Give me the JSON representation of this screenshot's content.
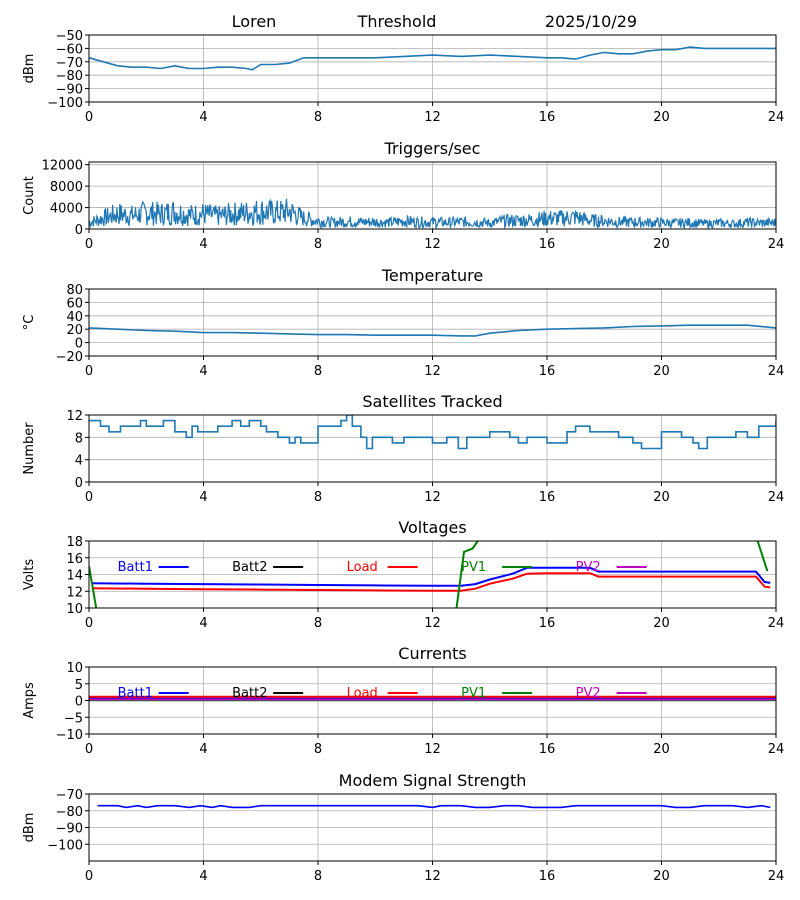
{
  "header": {
    "site": "Loren",
    "mode": "Threshold",
    "date": "2025/10/29"
  },
  "chart_data": [
    {
      "type": "line",
      "title": "",
      "ylabel": "dBm",
      "xlim": [
        0,
        24
      ],
      "ylim": [
        -100,
        -50
      ],
      "xticks": [
        0,
        4,
        8,
        12,
        16,
        20,
        24
      ],
      "yticks": [
        -100,
        -90,
        -80,
        -70,
        -60,
        -50
      ],
      "series": [
        {
          "name": "Threshold",
          "color": "#1f77b4",
          "x": [
            0,
            0.5,
            1,
            1.5,
            2,
            2.5,
            3,
            3.5,
            4,
            4.5,
            5,
            5.5,
            5.7,
            6,
            6.5,
            7,
            7.5,
            8,
            9,
            10,
            11,
            12,
            13,
            14,
            15,
            16,
            16.5,
            17,
            17.5,
            18,
            18.5,
            19,
            19.5,
            20,
            20.5,
            21,
            21.5,
            22,
            23,
            24
          ],
          "y": [
            -67,
            -70,
            -73,
            -74,
            -74,
            -75,
            -73,
            -75,
            -75,
            -74,
            -74,
            -75,
            -76,
            -72,
            -72,
            -71,
            -67,
            -67,
            -67,
            -67,
            -66,
            -65,
            -66,
            -65,
            -66,
            -67,
            -67,
            -68,
            -65,
            -63,
            -64,
            -64,
            -62,
            -61,
            -61,
            -59,
            -60,
            -60,
            -60,
            -60
          ]
        }
      ]
    },
    {
      "type": "line",
      "title": "Triggers/sec",
      "ylabel": "Count",
      "xlim": [
        0,
        24
      ],
      "ylim": [
        0,
        12500
      ],
      "xticks": [
        0,
        4,
        8,
        12,
        16,
        20,
        24
      ],
      "yticks": [
        0,
        4000,
        8000,
        12000
      ],
      "series": [
        {
          "name": "Triggers",
          "color": "#1f77b4",
          "noisy": true,
          "x": [
            0,
            0.5,
            1,
            1.5,
            2,
            2.5,
            3,
            3.5,
            4,
            4.5,
            5,
            5.5,
            6,
            6.5,
            7,
            7.5,
            8,
            8.5,
            9,
            9.5,
            10,
            10.5,
            11,
            11.5,
            12,
            12.5,
            13,
            13.5,
            14,
            14.5,
            15,
            15.5,
            16,
            16.5,
            17,
            17.5,
            18,
            18.5,
            19,
            19.5,
            20,
            20.5,
            21,
            21.5,
            22,
            22.5,
            23,
            23.5,
            24
          ],
          "y": [
            1200,
            2000,
            2800,
            2500,
            3000,
            2800,
            3200,
            2600,
            2800,
            2400,
            2800,
            3000,
            3300,
            3000,
            3300,
            2000,
            1500,
            1200,
            1400,
            1300,
            1300,
            1200,
            1500,
            1300,
            1300,
            1200,
            1300,
            1300,
            1100,
            1500,
            1600,
            1700,
            2000,
            2000,
            2200,
            1600,
            1500,
            1300,
            1300,
            1200,
            1200,
            1100,
            1200,
            1000,
            1100,
            1000,
            1200,
            1100,
            1200
          ]
        }
      ]
    },
    {
      "type": "line",
      "title": "Temperature",
      "ylabel": "°C",
      "xlim": [
        0,
        24
      ],
      "ylim": [
        -20,
        80
      ],
      "xticks": [
        0,
        4,
        8,
        12,
        16,
        20,
        24
      ],
      "yticks": [
        -20,
        0,
        20,
        40,
        60,
        80
      ],
      "series": [
        {
          "name": "Temperature",
          "color": "#1f77b4",
          "x": [
            0,
            1,
            2,
            3,
            4,
            5,
            6,
            7,
            8,
            9,
            10,
            11,
            12,
            13,
            13.5,
            14,
            15,
            16,
            17,
            18,
            19,
            20,
            21,
            22,
            23,
            24
          ],
          "y": [
            22,
            20,
            18,
            17,
            15,
            15,
            14,
            13,
            12,
            12,
            11,
            11,
            11,
            10,
            10,
            14,
            18,
            20,
            21,
            22,
            24,
            25,
            26,
            26,
            26,
            22
          ]
        }
      ]
    },
    {
      "type": "line",
      "title": "Satellites Tracked",
      "ylabel": "Number",
      "xlim": [
        0,
        24
      ],
      "ylim": [
        0,
        12
      ],
      "xticks": [
        0,
        4,
        8,
        12,
        16,
        20,
        24
      ],
      "yticks": [
        0,
        4,
        8,
        12
      ],
      "series": [
        {
          "name": "Satellites",
          "color": "#1f77b4",
          "step": true,
          "x": [
            0,
            0.4,
            0.7,
            1.1,
            1.4,
            1.8,
            2,
            2.3,
            2.6,
            3,
            3.4,
            3.6,
            3.8,
            4,
            4.2,
            4.5,
            5,
            5.3,
            5.6,
            6,
            6.2,
            6.6,
            7,
            7.2,
            7.4,
            7.9,
            8,
            8.5,
            8.8,
            9,
            9.2,
            9.5,
            9.7,
            9.9,
            10.2,
            10.6,
            11,
            11.5,
            12,
            12.5,
            12.9,
            13.2,
            13.6,
            14,
            14.2,
            14.7,
            15,
            15.3,
            15.8,
            16,
            16.7,
            17,
            17.5,
            18,
            18.5,
            19,
            19.3,
            20,
            20.7,
            21.1,
            21.3,
            21.6,
            22,
            22.6,
            23,
            23.4,
            23.8,
            24
          ],
          "y": [
            11,
            10,
            9,
            10,
            10,
            11,
            10,
            10,
            11,
            9,
            8,
            10,
            9,
            9,
            9,
            10,
            11,
            10,
            11,
            10,
            9,
            8,
            7,
            8,
            7,
            7,
            10,
            10,
            11,
            12,
            10,
            8,
            6,
            8,
            8,
            7,
            8,
            8,
            7,
            8,
            6,
            8,
            8,
            9,
            9,
            8,
            7,
            8,
            8,
            7,
            9,
            10,
            9,
            9,
            8,
            7,
            6,
            9,
            8,
            7,
            6,
            8,
            8,
            9,
            8,
            10,
            10,
            11
          ]
        }
      ]
    },
    {
      "type": "line",
      "title": "Voltages",
      "ylabel": "Volts",
      "xlim": [
        0,
        24
      ],
      "ylim": [
        10,
        18
      ],
      "xticks": [
        0,
        4,
        8,
        12,
        16,
        20,
        24
      ],
      "yticks": [
        10,
        12,
        14,
        16,
        18
      ],
      "legend": [
        "Batt1",
        "Batt2",
        "Load",
        "PV1",
        "PV2"
      ],
      "series": [
        {
          "name": "Batt1",
          "color": "#0000ff",
          "x": [
            0.1,
            2,
            4,
            6,
            8,
            10,
            12,
            13,
            13.5,
            14,
            14.8,
            15.3,
            16,
            17,
            17.5,
            17.8,
            18,
            20,
            22,
            23.3,
            23.6,
            23.8
          ],
          "y": [
            12.95,
            12.9,
            12.85,
            12.8,
            12.75,
            12.7,
            12.65,
            12.65,
            12.85,
            13.4,
            14.1,
            14.8,
            14.8,
            14.8,
            14.8,
            14.35,
            14.35,
            14.35,
            14.35,
            14.35,
            13.1,
            13.0
          ]
        },
        {
          "name": "Batt2",
          "color": "#000000",
          "x": [],
          "y": []
        },
        {
          "name": "Load",
          "color": "#ff0000",
          "x": [
            0.1,
            2,
            4,
            6,
            8,
            10,
            12,
            13,
            13.5,
            14,
            14.8,
            15.3,
            16,
            17,
            17.5,
            17.8,
            18,
            20,
            22,
            23.3,
            23.6,
            23.8
          ],
          "y": [
            12.35,
            12.3,
            12.25,
            12.2,
            12.15,
            12.1,
            12.05,
            12.05,
            12.3,
            12.9,
            13.5,
            14.1,
            14.15,
            14.15,
            14.15,
            13.75,
            13.75,
            13.75,
            13.75,
            13.75,
            12.55,
            12.45
          ]
        },
        {
          "name": "PV1",
          "color": "#008000",
          "x": [
            0,
            0.25,
            0.3,
            12.8,
            13.1,
            13.4,
            13.7,
            23.3,
            23.7
          ],
          "y": [
            15,
            10,
            9,
            9,
            16.7,
            17.1,
            18.6,
            18.6,
            14.4
          ]
        },
        {
          "name": "PV2",
          "color": "#bf00bf",
          "x": [],
          "y": []
        }
      ]
    },
    {
      "type": "line",
      "title": "Currents",
      "ylabel": "Amps",
      "xlim": [
        0,
        24
      ],
      "ylim": [
        -10,
        10
      ],
      "xticks": [
        0,
        4,
        8,
        12,
        16,
        20,
        24
      ],
      "yticks": [
        -10,
        -5,
        0,
        5,
        10
      ],
      "legend": [
        "Batt1",
        "Batt2",
        "Load",
        "PV1",
        "PV2"
      ],
      "series": [
        {
          "name": "Batt1",
          "color": "#0000ff",
          "x": [
            0,
            24
          ],
          "y": [
            0.6,
            0.6
          ]
        },
        {
          "name": "Batt2",
          "color": "#000000",
          "x": [],
          "y": []
        },
        {
          "name": "Load",
          "color": "#ff0000",
          "x": [
            0,
            24
          ],
          "y": [
            1.1,
            1.1
          ]
        },
        {
          "name": "PV1",
          "color": "#008000",
          "x": [
            0,
            24
          ],
          "y": [
            0.1,
            0.1
          ]
        },
        {
          "name": "PV2",
          "color": "#bf00bf",
          "x": [
            0,
            24
          ],
          "y": [
            0.3,
            0.3
          ]
        }
      ]
    },
    {
      "type": "line",
      "title": "Modem Signal Strength",
      "ylabel": "dBm",
      "xlim": [
        0,
        24
      ],
      "ylim": [
        -110,
        -70
      ],
      "xticks": [
        0,
        4,
        8,
        12,
        16,
        20,
        24
      ],
      "yticks": [
        -100,
        -90,
        -80,
        -70
      ],
      "series": [
        {
          "name": "Modem",
          "color": "#0000ff",
          "x": [
            0.3,
            1,
            1.3,
            1.7,
            2,
            2.4,
            3,
            3.5,
            3.9,
            4.3,
            4.6,
            5,
            5.6,
            6,
            8,
            10,
            11.5,
            12,
            12.3,
            13,
            13.5,
            14,
            14.5,
            15,
            15.5,
            16,
            16.5,
            17,
            18,
            19,
            20,
            20.5,
            21,
            21.5,
            22,
            22.5,
            23,
            23.5,
            23.8
          ],
          "y": [
            -77,
            -77,
            -78,
            -77,
            -78,
            -77,
            -77,
            -78,
            -77,
            -78,
            -77,
            -78,
            -78,
            -77,
            -77,
            -77,
            -77,
            -78,
            -77,
            -77,
            -78,
            -78,
            -77,
            -77,
            -78,
            -78,
            -78,
            -77,
            -77,
            -77,
            -77,
            -78,
            -78,
            -77,
            -77,
            -77,
            -78,
            -77,
            -78
          ]
        }
      ]
    }
  ]
}
